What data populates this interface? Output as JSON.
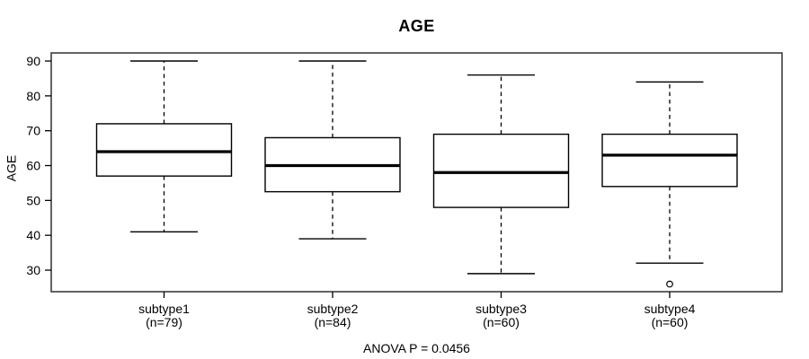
{
  "chart_data": {
    "type": "boxplot",
    "title": "AGE",
    "ylabel": "AGE",
    "xlabel": "",
    "annotation": "ANOVA P = 0.0456",
    "yticks": [
      30,
      40,
      50,
      60,
      70,
      80,
      90
    ],
    "ylim": [
      23.8,
      92.3
    ],
    "grid": false,
    "legend_position": "none",
    "line_color": "#000000",
    "box_fill": "#ffffff",
    "frame_color": "#3d3d3d",
    "categories": [
      "subtype1",
      "subtype2",
      "subtype3",
      "subtype4"
    ],
    "category_sublabels": [
      "(n=79)",
      "(n=84)",
      "(n=60)",
      "(n=60)"
    ],
    "series": [
      {
        "name": "subtype1",
        "n": 79,
        "whisker_low": 41,
        "q1": 57,
        "median": 64,
        "q3": 72,
        "whisker_high": 90,
        "outliers": []
      },
      {
        "name": "subtype2",
        "n": 84,
        "whisker_low": 39,
        "q1": 52.5,
        "median": 60,
        "q3": 68,
        "whisker_high": 90,
        "outliers": []
      },
      {
        "name": "subtype3",
        "n": 60,
        "whisker_low": 29,
        "q1": 48,
        "median": 58,
        "q3": 69,
        "whisker_high": 86,
        "outliers": []
      },
      {
        "name": "subtype4",
        "n": 60,
        "whisker_low": 32,
        "q1": 54,
        "median": 63,
        "q3": 69,
        "whisker_high": 84,
        "outliers": [
          26
        ]
      }
    ]
  }
}
